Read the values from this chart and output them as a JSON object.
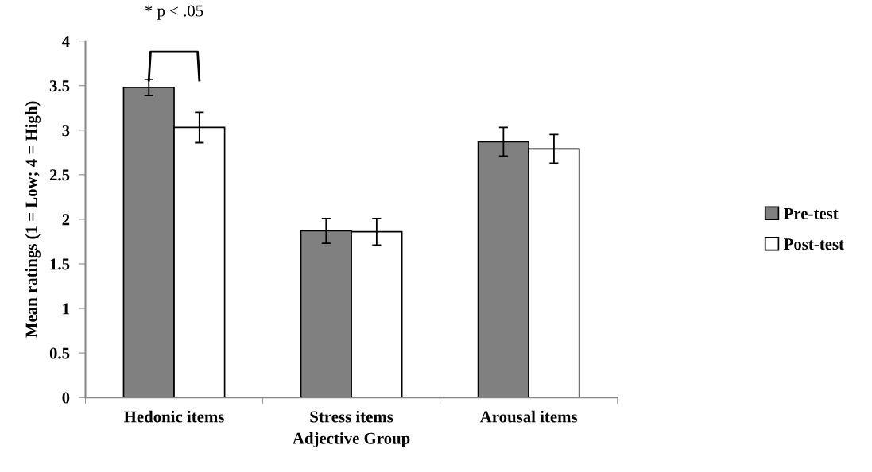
{
  "chart_data": {
    "type": "bar",
    "xlabel": "Adjective Group",
    "ylabel": "Mean ratings (1 = Low; 4 = High)",
    "categories": [
      "Hedonic items",
      "Stress items",
      "Arousal items"
    ],
    "series": [
      {
        "name": "Pre-test",
        "color": "#808080",
        "values": [
          3.48,
          1.87,
          2.87
        ],
        "errors": [
          0.09,
          0.14,
          0.16
        ]
      },
      {
        "name": "Post-test",
        "color": "#ffffff",
        "values": [
          3.03,
          1.86,
          2.79
        ],
        "errors": [
          0.17,
          0.15,
          0.16
        ]
      }
    ],
    "ylim": [
      0,
      4
    ],
    "yticks": [
      0,
      0.5,
      1,
      1.5,
      2,
      2.5,
      3,
      3.5,
      4
    ],
    "annotations": [
      "* p < .05"
    ],
    "grid": false,
    "legend": "right"
  }
}
